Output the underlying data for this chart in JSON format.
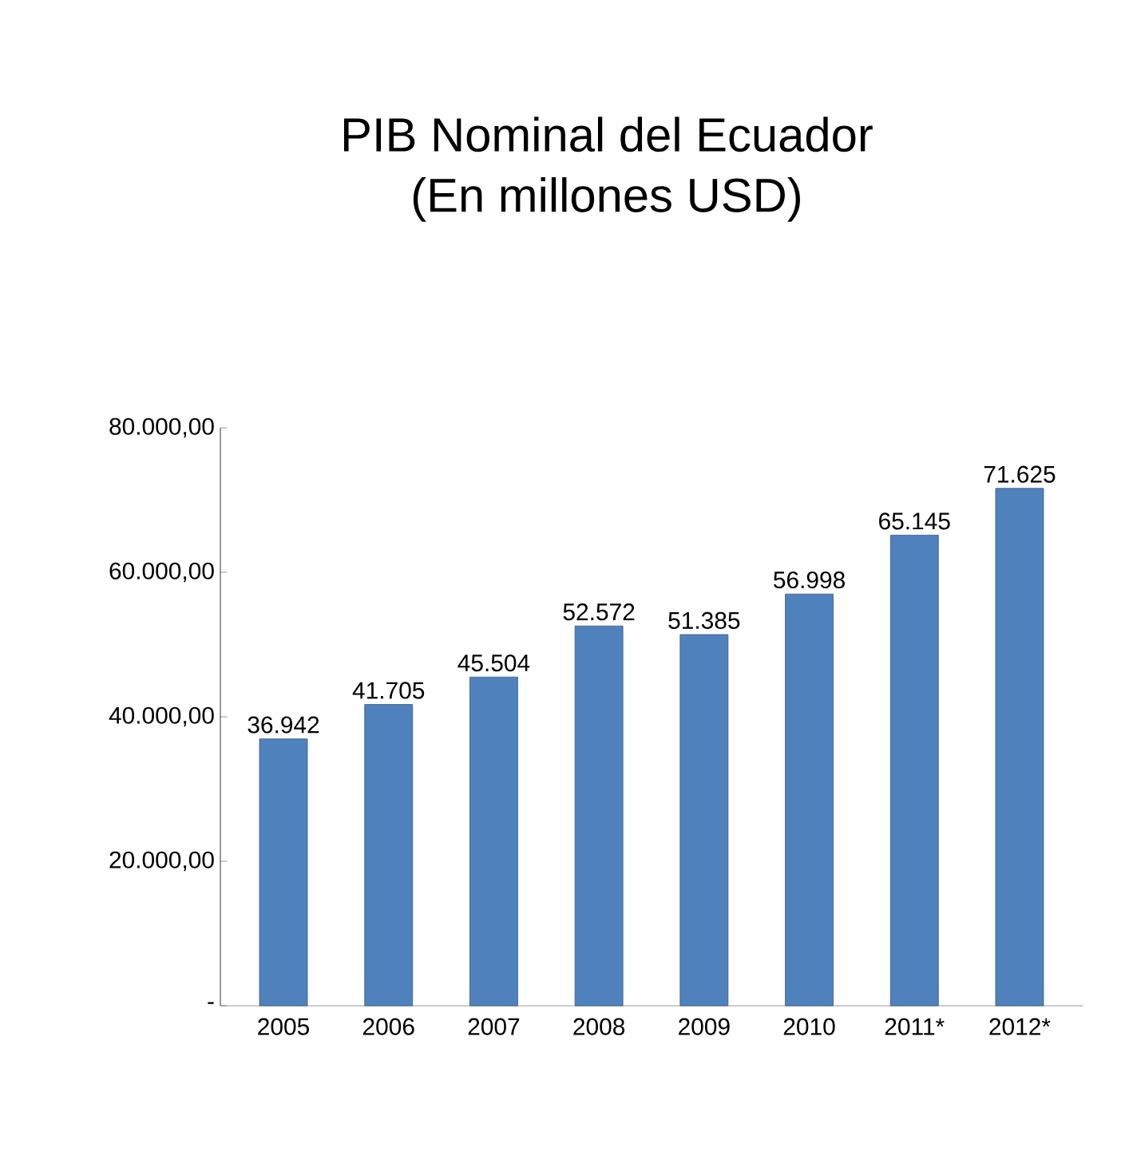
{
  "chart_data": {
    "type": "bar",
    "title": "PIB Nominal del Ecuador",
    "subtitle": "(En millones USD)",
    "categories": [
      "2005",
      "2006",
      "2007",
      "2008",
      "2009",
      "2010",
      "2011*",
      "2012*"
    ],
    "values": [
      36942,
      41705,
      45504,
      52572,
      51385,
      56998,
      65145,
      71625
    ],
    "value_labels": [
      "36.942",
      "41.705",
      "45.504",
      "52.572",
      "51.385",
      "56.998",
      "65.145",
      "71.625"
    ],
    "color": "#4f81bd",
    "ylim": [
      0,
      80000
    ],
    "yticks": [
      {
        "value": 0,
        "label": "-"
      },
      {
        "value": 20000,
        "label": "20.000,00"
      },
      {
        "value": 40000,
        "label": "40.000,00"
      },
      {
        "value": 60000,
        "label": "60.000,00"
      },
      {
        "value": 80000,
        "label": "80.000,00"
      }
    ],
    "grid": false
  }
}
